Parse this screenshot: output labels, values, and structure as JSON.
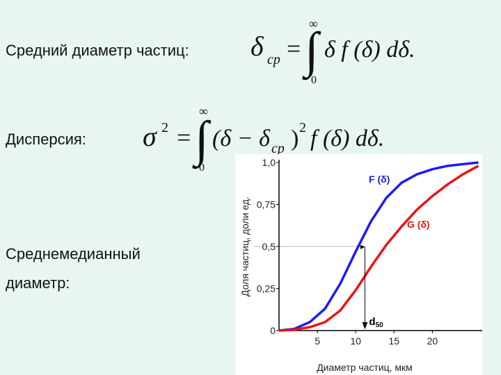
{
  "labels": {
    "mean": "Средний диаметр частиц:",
    "dispersion": "Дисперсия:",
    "median": [
      "Среднемедианный",
      "диаметр:"
    ]
  },
  "formulas": [
    {
      "lhs": "δ",
      "lhs_sub": "ср",
      "eq": "=",
      "integral": "∫",
      "upper": "∞",
      "lower": "0",
      "body": "δ f (δ) dδ."
    },
    {
      "lhs": "σ",
      "lhs_sup": "2",
      "eq": "=",
      "integral": "∫",
      "upper": "∞",
      "lower": "0",
      "body1": "(δ − δ",
      "sub": "ср",
      "body2": ")",
      "sup": "2",
      "body3": "f (δ) dδ."
    }
  ],
  "chart_data": {
    "type": "line",
    "xlabel": "Диаметр частиц, мкм",
    "ylabel": "Доля частиц, доли ед.",
    "x": [
      0,
      2,
      4,
      6,
      8,
      10,
      12,
      14,
      16,
      18,
      20,
      22,
      24,
      26
    ],
    "series": [
      {
        "name": "F (δ)",
        "color": "#1a1aff",
        "values": [
          0,
          0.01,
          0.05,
          0.13,
          0.28,
          0.47,
          0.65,
          0.79,
          0.88,
          0.93,
          0.96,
          0.98,
          0.99,
          1.0
        ]
      },
      {
        "name": "G (δ)",
        "color": "#ee1111",
        "values": [
          0,
          0.005,
          0.02,
          0.05,
          0.12,
          0.24,
          0.38,
          0.51,
          0.62,
          0.72,
          0.8,
          0.87,
          0.93,
          0.98
        ]
      }
    ],
    "xlim": [
      0,
      26.5
    ],
    "ylim": [
      0,
      1
    ],
    "xticks": [
      5,
      10,
      15,
      20
    ],
    "yticks": [
      {
        "value": 0,
        "label": "0"
      },
      {
        "value": 0.25,
        "label": "0,25"
      },
      {
        "value": 0.5,
        "label": "0,5"
      },
      {
        "value": 0.75,
        "label": "0,75"
      },
      {
        "value": 1,
        "label": "1,0"
      }
    ],
    "median": {
      "text": "d",
      "subscript": "50",
      "x": 11.2,
      "y": 0.5
    }
  }
}
